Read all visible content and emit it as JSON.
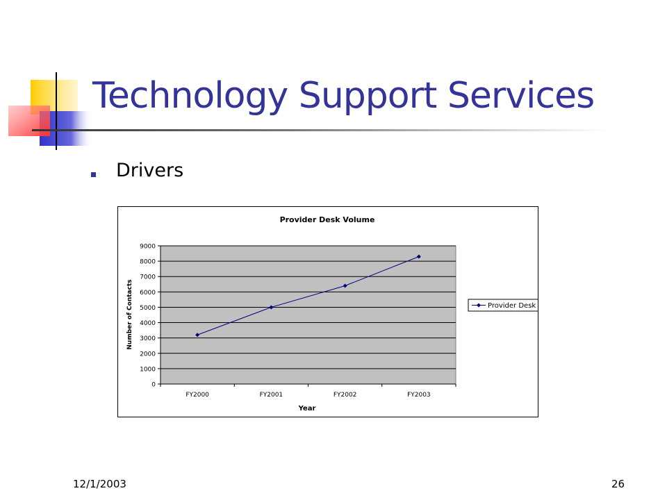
{
  "slide": {
    "title": "Technology Support Services",
    "bullet": "Drivers",
    "footer_date": "12/1/2003",
    "page_number": "26",
    "colors": {
      "title": "#333399",
      "bullet": "#333399",
      "deco_yellow": "#ffcc00",
      "deco_blue": "#3333cc",
      "deco_red": "#ff3333",
      "series": "#000080",
      "plot_bg": "#c0c0c0"
    }
  },
  "chart_data": {
    "type": "line",
    "title": "Provider Desk Volume",
    "xlabel": "Year",
    "ylabel": "Number of Contacts",
    "categories": [
      "FY2000",
      "FY2001",
      "FY2002",
      "FY2003"
    ],
    "series": [
      {
        "name": "Provider Desk",
        "values": [
          3200,
          5000,
          6400,
          8300
        ]
      }
    ],
    "ylim": [
      0,
      9000
    ],
    "yticks": [
      "0",
      "1000",
      "2000",
      "3000",
      "4000",
      "5000",
      "6000",
      "7000",
      "8000",
      "9000"
    ],
    "grid": true,
    "legend_position": "right"
  }
}
